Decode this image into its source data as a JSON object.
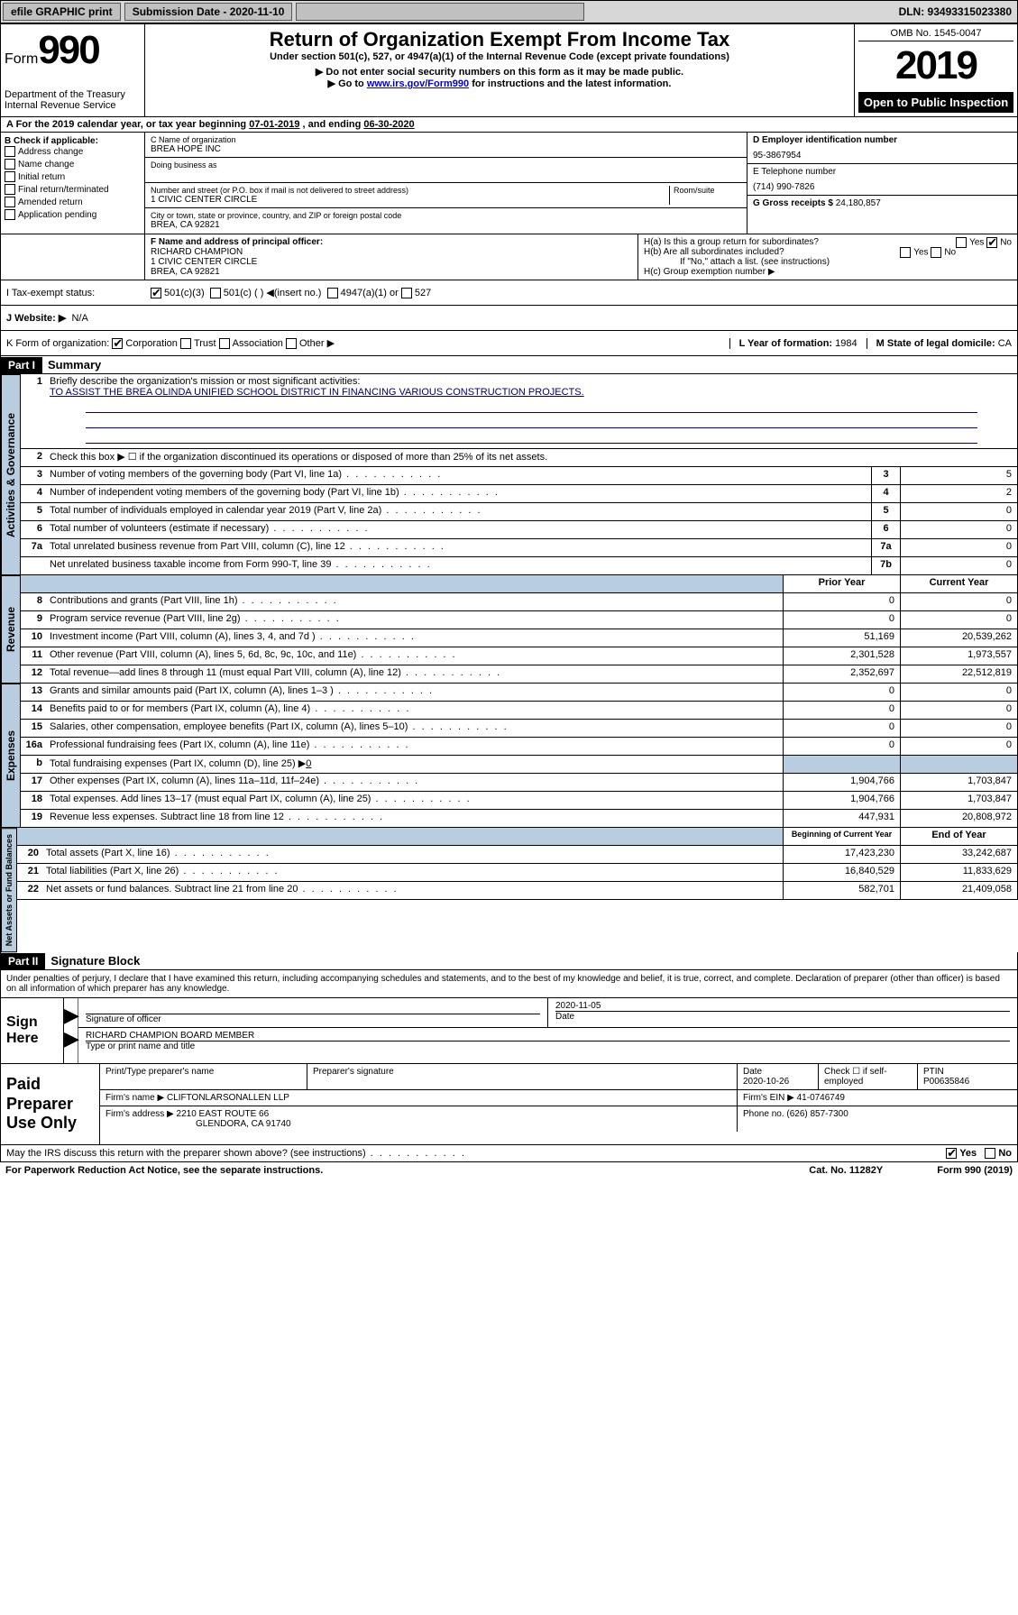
{
  "topbar": {
    "efile": "efile GRAPHIC print",
    "subdate_label": "Submission Date - ",
    "subdate": "2020-11-10",
    "dln": "DLN: 93493315023380"
  },
  "header": {
    "form_prefix": "Form",
    "form_number": "990",
    "dept1": "Department of the Treasury",
    "dept2": "Internal Revenue Service",
    "title": "Return of Organization Exempt From Income Tax",
    "subtitle": "Under section 501(c), 527, or 4947(a)(1) of the Internal Revenue Code (except private foundations)",
    "note1": "▶ Do not enter social security numbers on this form as it may be made public.",
    "note2_pre": "▶ Go to ",
    "note2_link": "www.irs.gov/Form990",
    "note2_post": " for instructions and the latest information.",
    "omb": "OMB No. 1545-0047",
    "year": "2019",
    "open": "Open to Public Inspection"
  },
  "taxyear": {
    "prefix": "A   For the 2019 calendar year, or tax year beginning ",
    "begin": "07-01-2019",
    "mid": "   , and ending ",
    "end": "06-30-2020"
  },
  "boxB": {
    "label": "B Check if applicable:",
    "items": [
      "Address change",
      "Name change",
      "Initial return",
      "Final return/terminated",
      "Amended return",
      "Application pending"
    ]
  },
  "boxC": {
    "name_label": "C Name of organization",
    "name": "BREA HOPE INC",
    "dba_label": "Doing business as",
    "dba": "",
    "addr_label": "Number and street (or P.O. box if mail is not delivered to street address)",
    "room_label": "Room/suite",
    "addr": "1 CIVIC CENTER CIRCLE",
    "city_label": "City or town, state or province, country, and ZIP or foreign postal code",
    "city": "BREA, CA  92821"
  },
  "boxD": {
    "label": "D Employer identification number",
    "val": "95-3867954"
  },
  "boxE": {
    "label": "E Telephone number",
    "val": "(714) 990-7826"
  },
  "boxG": {
    "label": "G Gross receipts $ ",
    "val": "24,180,857"
  },
  "boxF": {
    "label": "F  Name and address of principal officer:",
    "name": "RICHARD CHAMPION",
    "addr1": "1 CIVIC CENTER CIRCLE",
    "addr2": "BREA, CA  92821"
  },
  "boxH": {
    "ha": "H(a)  Is this a group return for subordinates?",
    "hb": "H(b)  Are all subordinates included?",
    "hb_note": "If \"No,\" attach a list. (see instructions)",
    "hc": "H(c)  Group exemption number ▶"
  },
  "boxI": {
    "label": "I   Tax-exempt status:",
    "opts": [
      "501(c)(3)",
      "501(c) (  ) ◀(insert no.)",
      "4947(a)(1) or",
      "527"
    ]
  },
  "boxJ": {
    "label": "J   Website: ▶",
    "val": "N/A"
  },
  "boxK": {
    "label": "K Form of organization:",
    "opts": [
      "Corporation",
      "Trust",
      "Association",
      "Other ▶"
    ]
  },
  "boxL": {
    "label": "L Year of formation: ",
    "val": "1984"
  },
  "boxM": {
    "label": "M State of legal domicile: ",
    "val": "CA"
  },
  "parts": {
    "p1": "Part I",
    "p1_title": "Summary",
    "p2": "Part II",
    "p2_title": "Signature Block"
  },
  "tabs": {
    "gov": "Activities & Governance",
    "rev": "Revenue",
    "exp": "Expenses",
    "net": "Net Assets or Fund Balances"
  },
  "summary": {
    "l1_label": "Briefly describe the organization's mission or most significant activities:",
    "l1_val": "TO ASSIST THE BREA OLINDA UNIFIED SCHOOL DISTRICT IN FINANCING VARIOUS CONSTRUCTION PROJECTS.",
    "l2": "Check this box ▶ ☐  if the organization discontinued its operations or disposed of more than 25% of its net assets.",
    "rows_gov": [
      {
        "n": "3",
        "d": "Number of voting members of the governing body (Part VI, line 1a)",
        "box": "3",
        "v": "5"
      },
      {
        "n": "4",
        "d": "Number of independent voting members of the governing body (Part VI, line 1b)",
        "box": "4",
        "v": "2"
      },
      {
        "n": "5",
        "d": "Total number of individuals employed in calendar year 2019 (Part V, line 2a)",
        "box": "5",
        "v": "0"
      },
      {
        "n": "6",
        "d": "Total number of volunteers (estimate if necessary)",
        "box": "6",
        "v": "0"
      },
      {
        "n": "7a",
        "d": "Total unrelated business revenue from Part VIII, column (C), line 12",
        "box": "7a",
        "v": "0"
      },
      {
        "n": "",
        "d": "Net unrelated business taxable income from Form 990-T, line 39",
        "box": "7b",
        "v": "0"
      }
    ],
    "hdr_prior": "Prior Year",
    "hdr_curr": "Current Year",
    "rows_rev": [
      {
        "n": "8",
        "d": "Contributions and grants (Part VIII, line 1h)",
        "p": "0",
        "c": "0"
      },
      {
        "n": "9",
        "d": "Program service revenue (Part VIII, line 2g)",
        "p": "0",
        "c": "0"
      },
      {
        "n": "10",
        "d": "Investment income (Part VIII, column (A), lines 3, 4, and 7d )",
        "p": "51,169",
        "c": "20,539,262"
      },
      {
        "n": "11",
        "d": "Other revenue (Part VIII, column (A), lines 5, 6d, 8c, 9c, 10c, and 11e)",
        "p": "2,301,528",
        "c": "1,973,557"
      },
      {
        "n": "12",
        "d": "Total revenue—add lines 8 through 11 (must equal Part VIII, column (A), line 12)",
        "p": "2,352,697",
        "c": "22,512,819"
      }
    ],
    "rows_exp": [
      {
        "n": "13",
        "d": "Grants and similar amounts paid (Part IX, column (A), lines 1–3 )",
        "p": "0",
        "c": "0"
      },
      {
        "n": "14",
        "d": "Benefits paid to or for members (Part IX, column (A), line 4)",
        "p": "0",
        "c": "0"
      },
      {
        "n": "15",
        "d": "Salaries, other compensation, employee benefits (Part IX, column (A), lines 5–10)",
        "p": "0",
        "c": "0"
      },
      {
        "n": "16a",
        "d": "Professional fundraising fees (Part IX, column (A), line 11e)",
        "p": "0",
        "c": "0"
      }
    ],
    "row_b": {
      "n": "b",
      "d": "Total fundraising expenses (Part IX, column (D), line 25) ▶",
      "v": "0"
    },
    "rows_exp2": [
      {
        "n": "17",
        "d": "Other expenses (Part IX, column (A), lines 11a–11d, 11f–24e)",
        "p": "1,904,766",
        "c": "1,703,847"
      },
      {
        "n": "18",
        "d": "Total expenses. Add lines 13–17 (must equal Part IX, column (A), line 25)",
        "p": "1,904,766",
        "c": "1,703,847"
      },
      {
        "n": "19",
        "d": "Revenue less expenses. Subtract line 18 from line 12",
        "p": "447,931",
        "c": "20,808,972"
      }
    ],
    "hdr_beg": "Beginning of Current Year",
    "hdr_end": "End of Year",
    "rows_net": [
      {
        "n": "20",
        "d": "Total assets (Part X, line 16)",
        "p": "17,423,230",
        "c": "33,242,687"
      },
      {
        "n": "21",
        "d": "Total liabilities (Part X, line 26)",
        "p": "16,840,529",
        "c": "11,833,629"
      },
      {
        "n": "22",
        "d": "Net assets or fund balances. Subtract line 21 from line 20",
        "p": "582,701",
        "c": "21,409,058"
      }
    ]
  },
  "perjury": "Under penalties of perjury, I declare that I have examined this return, including accompanying schedules and statements, and to the best of my knowledge and belief, it is true, correct, and complete. Declaration of preparer (other than officer) is based on all information of which preparer has any knowledge.",
  "sign": {
    "label": "Sign Here",
    "sig_label": "Signature of officer",
    "date_label": "Date",
    "date": "2020-11-05",
    "name": "RICHARD CHAMPION  BOARD MEMBER",
    "name_label": "Type or print name and title"
  },
  "prep": {
    "label": "Paid Preparer Use Only",
    "h1": "Print/Type preparer's name",
    "h2": "Preparer's signature",
    "h3": "Date",
    "date": "2020-10-26",
    "h4": "Check ☐ if self-employed",
    "h5": "PTIN",
    "ptin": "P00635846",
    "firm_label": "Firm's name    ▶ ",
    "firm": "CLIFTONLARSONALLEN LLP",
    "ein_label": "Firm's EIN ▶ ",
    "ein": "41-0746749",
    "addr_label": "Firm's address ▶ ",
    "addr1": "2210 EAST ROUTE 66",
    "addr2": "GLENDORA, CA  91740",
    "phone_label": "Phone no. ",
    "phone": "(626) 857-7300"
  },
  "discuss": {
    "q": "May the IRS discuss this return with the preparer shown above? (see instructions)",
    "yes": "Yes",
    "no": "No"
  },
  "footer": {
    "pra": "For Paperwork Reduction Act Notice, see the separate instructions.",
    "cat": "Cat. No. 11282Y",
    "form": "Form 990 (2019)"
  }
}
